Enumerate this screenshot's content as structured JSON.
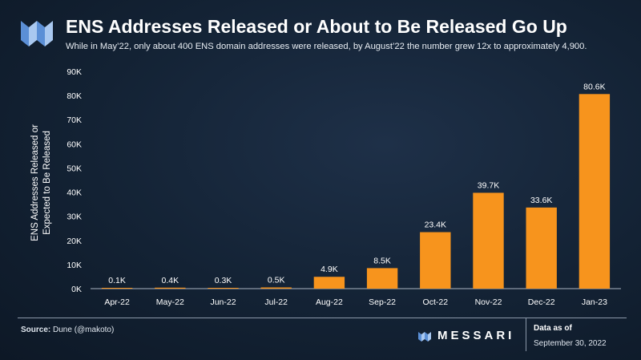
{
  "header": {
    "title": "ENS Addresses Released or About to Be Released Go Up",
    "subtitle": "While in May’22, only about 400 ENS domain addresses were released, by August’22 the number grew 12x to approximately 4,900."
  },
  "chart_data": {
    "type": "bar",
    "title": "ENS Addresses Released or About to Be Released Go Up",
    "ylabel_line1": "ENS Addresses Released or",
    "ylabel_line2": "Expected to Be Released",
    "xlabel": "",
    "categories": [
      "Apr-22",
      "May-22",
      "Jun-22",
      "Jul-22",
      "Aug-22",
      "Sep-22",
      "Oct-22",
      "Nov-22",
      "Dec-22",
      "Jan-23"
    ],
    "values": [
      100,
      400,
      300,
      500,
      4900,
      8500,
      23400,
      39700,
      33600,
      80600
    ],
    "data_labels": [
      "0.1K",
      "0.4K",
      "0.3K",
      "0.5K",
      "4.9K",
      "8.5K",
      "23.4K",
      "39.7K",
      "33.6K",
      "80.6K"
    ],
    "y_ticks": [
      0,
      10000,
      20000,
      30000,
      40000,
      50000,
      60000,
      70000,
      80000,
      90000
    ],
    "y_tick_labels": [
      "0K",
      "10K",
      "20K",
      "30K",
      "40K",
      "50K",
      "60K",
      "70K",
      "80K",
      "90K"
    ],
    "ylim": [
      0,
      90000
    ],
    "grid": false,
    "bar_color": "#f7941d"
  },
  "footer": {
    "source_label": "Source:",
    "source_value": " Dune (@makoto)",
    "brand": "MESSARI",
    "as_of_label": "Data as of",
    "as_of_date": "September 30, 2022"
  },
  "colors": {
    "background": "#132234",
    "bar": "#f7941d",
    "logo_primary": "#5b8fd6",
    "logo_secondary": "#a9c8f0"
  },
  "icons": {
    "header_logo": "messari-logo-icon",
    "footer_logo": "messari-mark-icon"
  }
}
